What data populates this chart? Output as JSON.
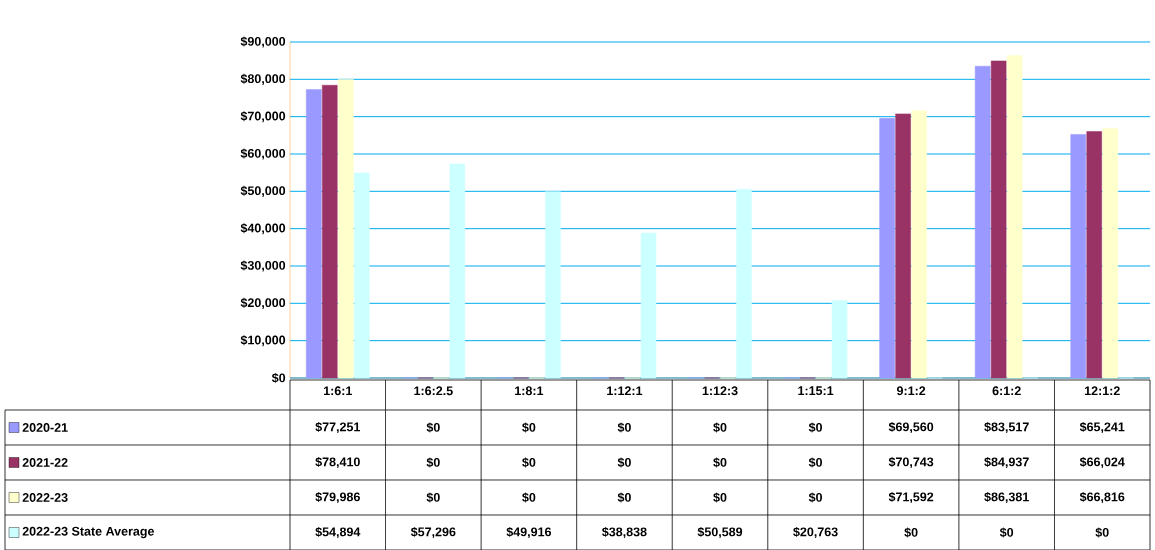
{
  "chart_data": {
    "type": "bar",
    "categories": [
      "1:6:1",
      "1:6:2.5",
      "1:8:1",
      "1:12:1",
      "1:12:3",
      "1:15:1",
      "9:1:2",
      "6:1:2",
      "12:1:2"
    ],
    "series": [
      {
        "name": "2020-21",
        "color": "#9999ff",
        "values": [
          77251,
          0,
          0,
          0,
          0,
          0,
          69560,
          83517,
          65241
        ],
        "value_labels": [
          "$77,251",
          "$0",
          "$0",
          "$0",
          "$0",
          "$0",
          "$69,560",
          "$83,517",
          "$65,241"
        ]
      },
      {
        "name": "2021-22",
        "color": "#993366",
        "values": [
          78410,
          0,
          0,
          0,
          0,
          0,
          70743,
          84937,
          66024
        ],
        "value_labels": [
          "$78,410",
          "$0",
          "$0",
          "$0",
          "$0",
          "$0",
          "$70,743",
          "$84,937",
          "$66,024"
        ]
      },
      {
        "name": "2022-23",
        "color": "#ffffcc",
        "values": [
          79986,
          0,
          0,
          0,
          0,
          0,
          71592,
          86381,
          66816
        ],
        "value_labels": [
          "$79,986",
          "$0",
          "$0",
          "$0",
          "$0",
          "$0",
          "$71,592",
          "$86,381",
          "$66,816"
        ]
      },
      {
        "name": "2022-23 State Average",
        "color": "#ccffff",
        "values": [
          54894,
          57296,
          49916,
          38838,
          50589,
          20763,
          0,
          0,
          0
        ],
        "value_labels": [
          "$54,894",
          "$57,296",
          "$49,916",
          "$38,838",
          "$50,589",
          "$20,763",
          "$0",
          "$0",
          "$0"
        ]
      }
    ],
    "ylim": [
      0,
      90000
    ],
    "yticks": [
      {
        "value": 0,
        "label": "$0"
      },
      {
        "value": 10000,
        "label": "$10,000"
      },
      {
        "value": 20000,
        "label": "$20,000"
      },
      {
        "value": 30000,
        "label": "$30,000"
      },
      {
        "value": 40000,
        "label": "$40,000"
      },
      {
        "value": 50000,
        "label": "$50,000"
      },
      {
        "value": 60000,
        "label": "$60,000"
      },
      {
        "value": 70000,
        "label": "$70,000"
      },
      {
        "value": 80000,
        "label": "$80,000"
      },
      {
        "value": 90000,
        "label": "$90,000"
      }
    ],
    "grid": "y",
    "legend": "bottom"
  }
}
